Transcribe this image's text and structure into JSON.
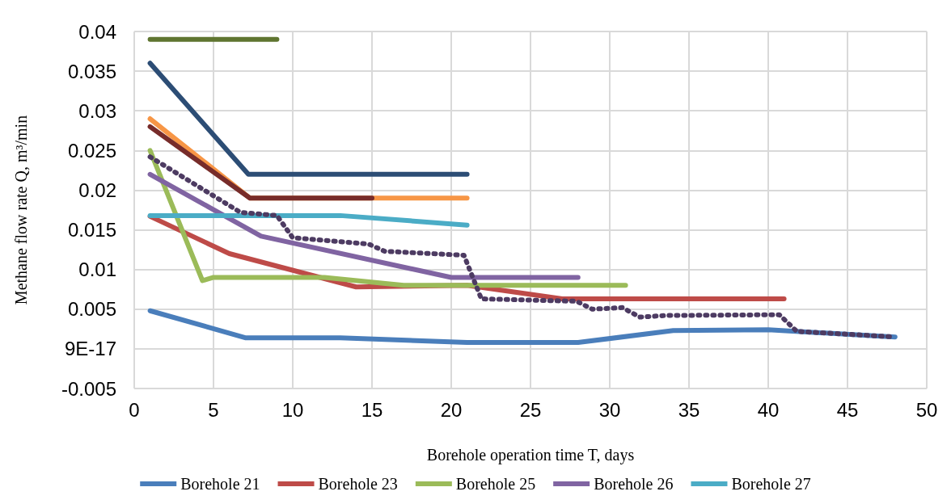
{
  "chart_data": {
    "type": "line",
    "xlabel": "Borehole operation time T, days",
    "ylabel": "Methane flow rate Q, m³/min",
    "xlim": [
      0,
      50
    ],
    "xticks": [
      0,
      5,
      10,
      15,
      20,
      25,
      30,
      35,
      40,
      45,
      50
    ],
    "ylim": [
      -0.005,
      0.04
    ],
    "yticks": [
      -0.005,
      {
        "value": 0,
        "label": "9E-17"
      },
      0.005,
      0.01,
      0.015,
      0.02,
      0.025,
      0.03,
      0.035,
      0.04
    ],
    "grid": true,
    "legend": "bottom",
    "marker": "none",
    "line_style": "solid",
    "series": [
      {
        "name": "Borehole 21",
        "color": "#4a7ebb",
        "x": [
          1,
          7,
          13,
          21,
          28,
          34,
          40,
          48
        ],
        "values": [
          0.0048,
          0.0014,
          0.0014,
          0.0008,
          0.0008,
          0.0023,
          0.0024,
          0.0015
        ]
      },
      {
        "name": "Borehole 23",
        "color": "#be4b48",
        "x": [
          1,
          6,
          14,
          21,
          27,
          41
        ],
        "values": [
          0.0167,
          0.012,
          0.0078,
          0.008,
          0.0063,
          0.0063
        ]
      },
      {
        "name": "Borehole 25",
        "color": "#9bbb59",
        "x": [
          1,
          4.3,
          5,
          12,
          17,
          31
        ],
        "values": [
          0.025,
          0.0086,
          0.009,
          0.009,
          0.008,
          0.008
        ]
      },
      {
        "name": "Borehole 26",
        "color": "#8064a2",
        "x": [
          1,
          8,
          20,
          28
        ],
        "values": [
          0.022,
          0.0142,
          0.009,
          0.009
        ]
      },
      {
        "name": "Borehole 27",
        "color": "#4bacc6",
        "x": [
          1,
          13,
          21
        ],
        "values": [
          0.0168,
          0.0168,
          0.0156
        ]
      },
      {
        "color": "#5f7530",
        "x": [
          1,
          9
        ],
        "values": [
          0.039,
          0.039
        ]
      },
      {
        "color": "#2c4d75",
        "x": [
          1,
          7.2,
          21
        ],
        "values": [
          0.036,
          0.022,
          0.022
        ]
      },
      {
        "color": "#f79646",
        "x": [
          1,
          7.3,
          21
        ],
        "values": [
          0.029,
          0.019,
          0.019
        ]
      },
      {
        "color": "#772c2a",
        "x": [
          1,
          7.3,
          15
        ],
        "values": [
          0.028,
          0.019,
          0.019
        ]
      },
      {
        "color": "#4d3b62",
        "line_style": "dotted",
        "x": [
          1,
          6.7,
          9,
          10,
          14.8,
          15.8,
          20.8,
          21.9,
          27.9,
          28.9,
          30.8,
          31.9,
          33.5,
          40.7,
          41.8,
          48
        ],
        "values": [
          0.0242,
          0.0172,
          0.0168,
          0.014,
          0.0132,
          0.0123,
          0.0118,
          0.0063,
          0.006,
          0.005,
          0.0052,
          0.004,
          0.0042,
          0.0043,
          0.0022,
          0.0015
        ]
      }
    ]
  }
}
